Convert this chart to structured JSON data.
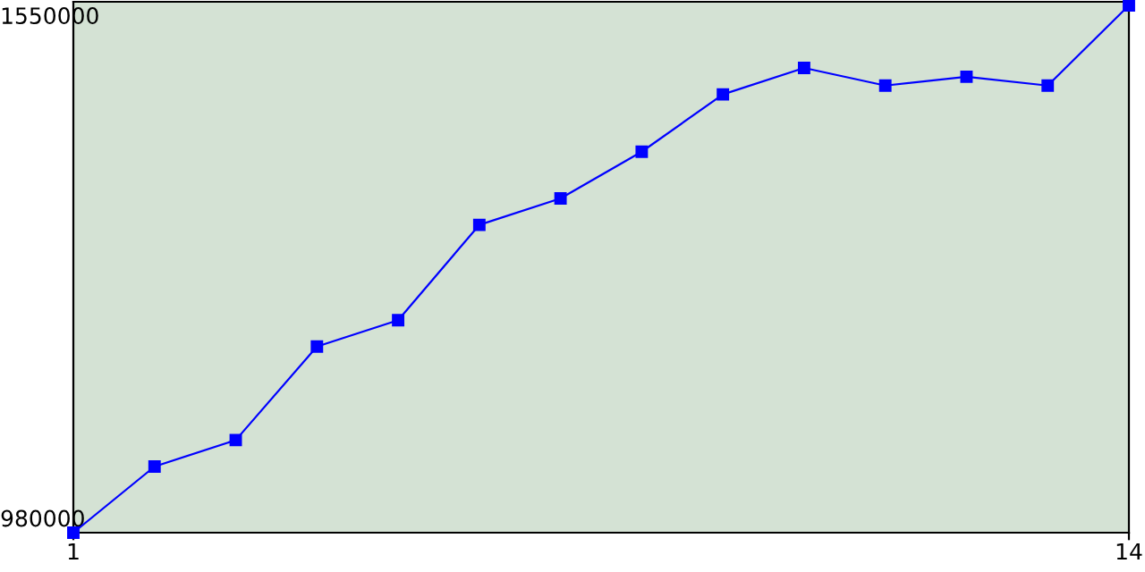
{
  "chart_data": {
    "type": "line",
    "x": [
      1,
      2,
      3,
      4,
      5,
      6,
      7,
      8,
      9,
      10,
      11,
      12,
      13,
      14
    ],
    "series": [
      {
        "color": "#0000ff",
        "values": [
          966000,
          1041000,
          1071000,
          1177000,
          1207000,
          1315000,
          1345000,
          1398000,
          1463000,
          1493000,
          1473000,
          1483000,
          1473000,
          1564000
        ]
      }
    ],
    "xlim": [
      1,
      14
    ],
    "ylim": [
      966000,
      1568000
    ],
    "xticks": [
      1,
      14
    ],
    "yticks": [
      980000,
      1550000
    ],
    "grid": false,
    "marker": "square",
    "line_style": "solid"
  }
}
